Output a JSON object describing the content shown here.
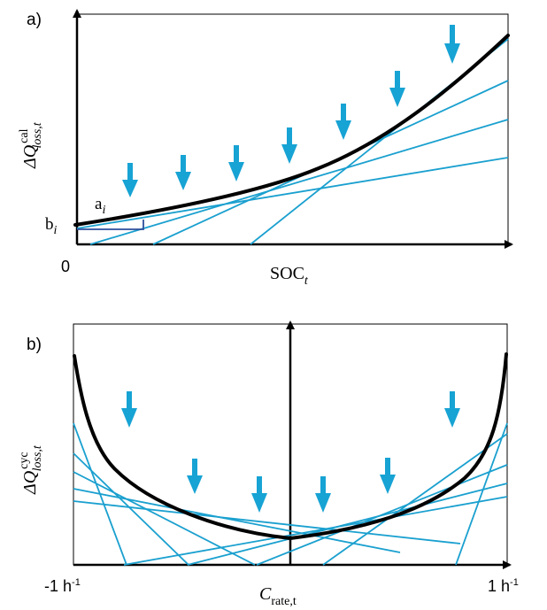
{
  "panel_a": {
    "label": "a)",
    "ylabel": {
      "main": "ΔQ",
      "sup": "cal",
      "sub": "loss,t"
    },
    "xlabel": {
      "main": "SOC",
      "sub": "t"
    },
    "x_origin": "0",
    "slope_label": {
      "main": "a",
      "sub": "i"
    },
    "intercept_label": {
      "main": "b",
      "sub": "i"
    }
  },
  "panel_b": {
    "label": "b)",
    "ylabel": {
      "main": "ΔQ",
      "sup": "cyc",
      "sub": "loss,t"
    },
    "xlabel": {
      "main": "C",
      "sub": "rate,t"
    },
    "x_min": {
      "main": "-1 h",
      "sup": "-1"
    },
    "x_max": {
      "main": "1 h",
      "sup": "-1"
    }
  },
  "colors": {
    "curve": "#000000",
    "tangent": "#1aa0cf",
    "arrow": "#17a3d4",
    "slope_triangle": "#2f4f9c"
  }
}
